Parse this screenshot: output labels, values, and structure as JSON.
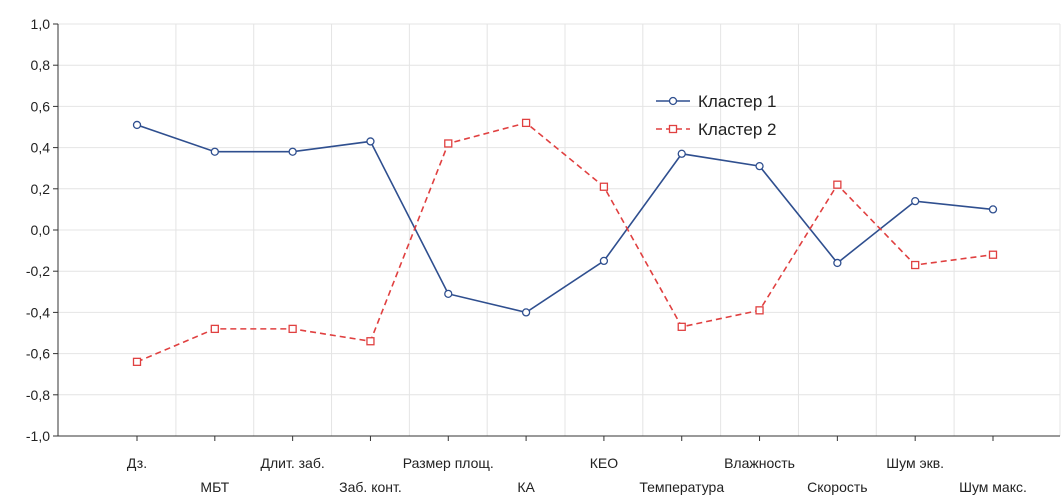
{
  "chart_data": {
    "type": "line",
    "categories": [
      "Дз.",
      "МБТ",
      "Длит. заб.",
      "Заб. конт.",
      "Размер площ.",
      "КА",
      "КЕО",
      "Температура",
      "Влажность",
      "Скорость",
      "Шум экв.",
      "Шум макс."
    ],
    "series": [
      {
        "name": "Кластер 1",
        "color": "#2f4f8f",
        "dash": "solid",
        "marker": "circle",
        "values": [
          0.51,
          0.38,
          0.38,
          0.43,
          -0.31,
          -0.4,
          -0.15,
          0.37,
          0.31,
          -0.16,
          0.14,
          0.1
        ]
      },
      {
        "name": "Кластер 2",
        "color": "#e04040",
        "dash": "dashed",
        "marker": "square",
        "values": [
          -0.64,
          -0.48,
          -0.48,
          -0.54,
          0.42,
          0.52,
          0.21,
          -0.47,
          -0.39,
          0.22,
          -0.17,
          -0.12
        ]
      }
    ],
    "yticks": [
      "1,0",
      "0,8",
      "0,6",
      "0,4",
      "0,2",
      "0,0",
      "-0,2",
      "-0,4",
      "-0,6",
      "-0,8",
      "-1,0"
    ],
    "ylim": [
      -1.0,
      1.0
    ],
    "grid": true,
    "legend_position": "top-right"
  }
}
